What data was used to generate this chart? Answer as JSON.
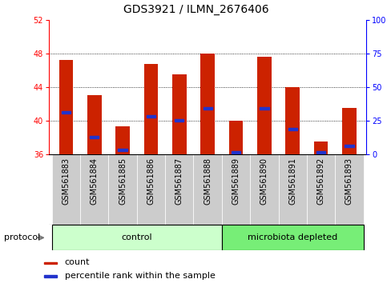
{
  "title": "GDS3921 / ILMN_2676406",
  "samples": [
    "GSM561883",
    "GSM561884",
    "GSM561885",
    "GSM561886",
    "GSM561887",
    "GSM561888",
    "GSM561889",
    "GSM561890",
    "GSM561891",
    "GSM561892",
    "GSM561893"
  ],
  "bar_tops": [
    47.2,
    43.0,
    39.3,
    46.7,
    45.5,
    48.0,
    40.0,
    47.6,
    44.0,
    37.5,
    41.5
  ],
  "blue_vals": [
    41.0,
    38.0,
    36.5,
    40.5,
    40.0,
    41.5,
    36.2,
    41.5,
    39.0,
    36.2,
    37.0
  ],
  "baseline": 36,
  "ylim_left": [
    36,
    52
  ],
  "ylim_right": [
    0,
    100
  ],
  "yticks_left": [
    36,
    40,
    44,
    48,
    52
  ],
  "yticks_right": [
    0,
    25,
    50,
    75,
    100
  ],
  "bar_color": "#cc2200",
  "blue_color": "#2233cc",
  "control_n": 6,
  "control_label": "control",
  "microbiota_label": "microbiota depleted",
  "control_color": "#ccffcc",
  "microbiota_color": "#77ee77",
  "protocol_label": "protocol",
  "legend_count": "count",
  "legend_pct": "percentile rank within the sample",
  "title_fontsize": 10,
  "tick_fontsize": 7,
  "annot_fontsize": 8,
  "legend_fontsize": 8
}
